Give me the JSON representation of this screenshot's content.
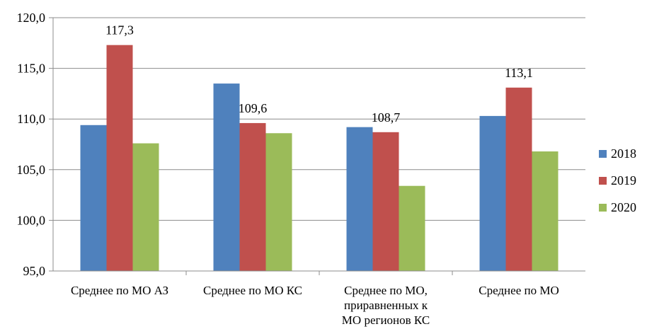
{
  "chart_data": {
    "type": "bar",
    "title": "",
    "xlabel": "",
    "ylabel": "",
    "ylim": [
      95,
      120
    ],
    "yticks": [
      "120,0",
      "115,0",
      "110,0",
      "105,0",
      "100,0",
      "95,0"
    ],
    "grid": true,
    "legend_position": "right",
    "categories": [
      [
        "Среднее по МО АЗ"
      ],
      [
        "Среднее по МО КС"
      ],
      [
        "Среднее по МО,",
        "приравненных к",
        "МО регионов КС"
      ],
      [
        "Среднее по МО"
      ]
    ],
    "series": [
      {
        "name": "2018",
        "color": "#4F81BD",
        "values": [
          109.4,
          113.5,
          109.2,
          110.3
        ]
      },
      {
        "name": "2019",
        "color": "#C0504D",
        "values": [
          117.3,
          109.6,
          108.7,
          113.1
        ]
      },
      {
        "name": "2020",
        "color": "#9BBB59",
        "values": [
          107.6,
          108.6,
          103.4,
          106.8
        ]
      }
    ],
    "data_labels": [
      {
        "series": 1,
        "category": 0,
        "text": "117,3"
      },
      {
        "series": 1,
        "category": 1,
        "text": "109,6"
      },
      {
        "series": 1,
        "category": 2,
        "text": "108,7"
      },
      {
        "series": 1,
        "category": 3,
        "text": "113,1"
      }
    ]
  }
}
